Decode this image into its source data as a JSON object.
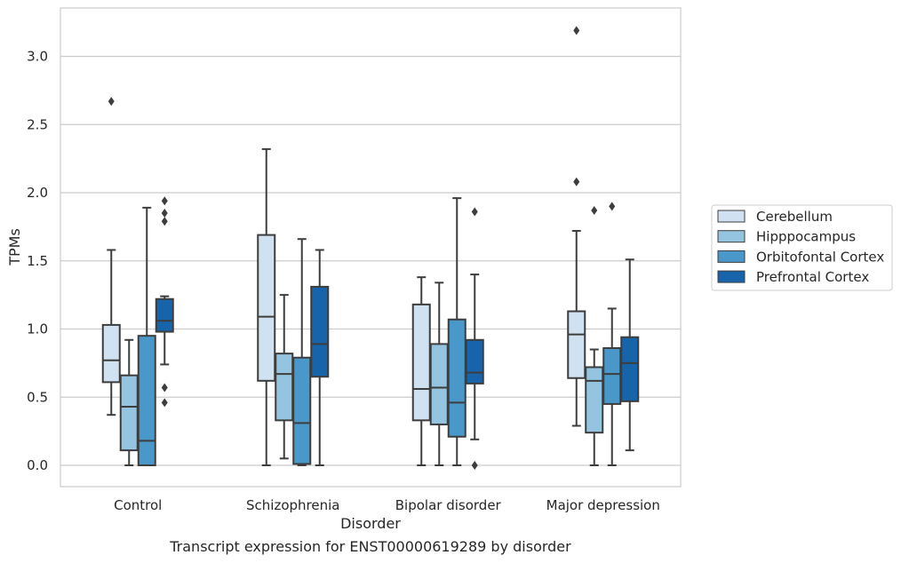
{
  "caption": "Transcript expression for ENST00000619289 by disorder",
  "chart_data": {
    "type": "box",
    "title": "",
    "xlabel": "Disorder",
    "ylabel": "TPMs",
    "ylim": [
      -0.15,
      3.35
    ],
    "yticks": [
      0.0,
      0.5,
      1.0,
      1.5,
      2.0,
      2.5,
      3.0
    ],
    "ytick_labels": [
      "0.0",
      "0.5",
      "1.0",
      "1.5",
      "2.0",
      "2.5",
      "3.0"
    ],
    "grid": "horizontal",
    "legend_position": "right, outside plot",
    "categories": [
      "Control",
      "Schizophrenia",
      "Bipolar disorder",
      "Major depression"
    ],
    "series": [
      {
        "name": "Cerebellum",
        "color": "#d0e1f2",
        "boxes": [
          {
            "whisker_low": 0.37,
            "q1": 0.61,
            "median": 0.77,
            "q3": 1.03,
            "whisker_high": 1.58,
            "outliers": [
              2.67
            ]
          },
          {
            "whisker_low": 0.0,
            "q1": 0.62,
            "median": 1.09,
            "q3": 1.69,
            "whisker_high": 2.32,
            "outliers": []
          },
          {
            "whisker_low": 0.0,
            "q1": 0.33,
            "median": 0.56,
            "q3": 1.18,
            "whisker_high": 1.38,
            "outliers": []
          },
          {
            "whisker_low": 0.29,
            "q1": 0.64,
            "median": 0.96,
            "q3": 1.13,
            "whisker_high": 1.72,
            "outliers": [
              2.08,
              3.19
            ]
          }
        ]
      },
      {
        "name": "Hipppocampus",
        "color": "#94c4df",
        "boxes": [
          {
            "whisker_low": 0.0,
            "q1": 0.11,
            "median": 0.43,
            "q3": 0.66,
            "whisker_high": 0.92,
            "outliers": []
          },
          {
            "whisker_low": 0.05,
            "q1": 0.33,
            "median": 0.67,
            "q3": 0.82,
            "whisker_high": 1.25,
            "outliers": []
          },
          {
            "whisker_low": 0.0,
            "q1": 0.3,
            "median": 0.57,
            "q3": 0.89,
            "whisker_high": 1.34,
            "outliers": []
          },
          {
            "whisker_low": 0.0,
            "q1": 0.24,
            "median": 0.62,
            "q3": 0.72,
            "whisker_high": 0.85,
            "outliers": [
              1.87
            ]
          }
        ]
      },
      {
        "name": "Orbitofontal Cortex",
        "color": "#4a98c9",
        "boxes": [
          {
            "whisker_low": 0.0,
            "q1": 0.0,
            "median": 0.18,
            "q3": 0.95,
            "whisker_high": 1.89,
            "outliers": []
          },
          {
            "whisker_low": 0.0,
            "q1": 0.01,
            "median": 0.31,
            "q3": 0.79,
            "whisker_high": 1.66,
            "outliers": []
          },
          {
            "whisker_low": 0.0,
            "q1": 0.21,
            "median": 0.46,
            "q3": 1.07,
            "whisker_high": 1.96,
            "outliers": []
          },
          {
            "whisker_low": 0.0,
            "q1": 0.45,
            "median": 0.67,
            "q3": 0.86,
            "whisker_high": 1.15,
            "outliers": [
              1.9
            ]
          }
        ]
      },
      {
        "name": "Prefrontal Cortex",
        "color": "#1764ab",
        "boxes": [
          {
            "whisker_low": 0.74,
            "q1": 0.98,
            "median": 1.06,
            "q3": 1.22,
            "whisker_high": 1.24,
            "outliers": [
              0.46,
              0.57,
              1.79,
              1.85,
              1.94
            ]
          },
          {
            "whisker_low": 0.0,
            "q1": 0.65,
            "median": 0.89,
            "q3": 1.31,
            "whisker_high": 1.58,
            "outliers": []
          },
          {
            "whisker_low": 0.19,
            "q1": 0.6,
            "median": 0.68,
            "q3": 0.92,
            "whisker_high": 1.4,
            "outliers": [
              0.0,
              1.86
            ]
          },
          {
            "whisker_low": 0.11,
            "q1": 0.47,
            "median": 0.75,
            "q3": 0.94,
            "whisker_high": 1.51,
            "outliers": []
          }
        ]
      }
    ]
  }
}
